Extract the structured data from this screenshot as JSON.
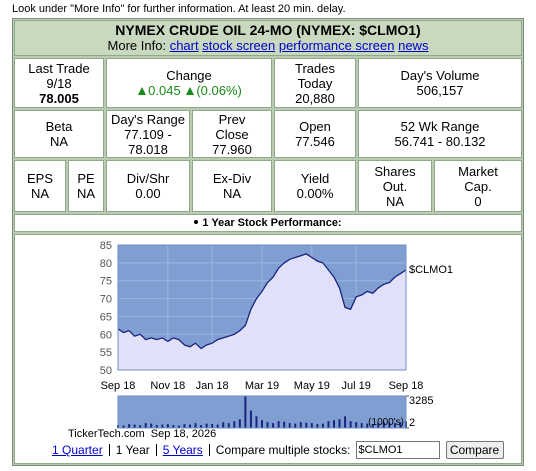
{
  "notice": "Look under \"More Info\" for further information. At least 20 min. delay.",
  "header": {
    "title": "NYMEX CRUDE OIL 24-MO (NYMEX: $CLMO1)",
    "more_info_label": "More Info:",
    "links": [
      "chart",
      "stock screen",
      "performance screen",
      "news"
    ]
  },
  "quote": {
    "last_trade": {
      "label": "Last Trade",
      "date": "9/18",
      "value": "78.005"
    },
    "change": {
      "label": "Change",
      "value": "0.045",
      "percent": "(0.06%)"
    },
    "trades_today": {
      "label": "Trades Today",
      "value": "20,880"
    },
    "days_volume": {
      "label": "Day's Volume",
      "value": "506,157"
    },
    "beta": {
      "label": "Beta",
      "value": "NA"
    },
    "days_range": {
      "label": "Day's Range",
      "value": "77.109 - 78.018"
    },
    "prev_close": {
      "label": "Prev Close",
      "value": "77.960"
    },
    "open": {
      "label": "Open",
      "value": "77.546"
    },
    "wk52_range": {
      "label": "52 Wk Range",
      "value": "56.741 - 80.132"
    },
    "eps": {
      "label": "EPS",
      "value": "NA"
    },
    "pe": {
      "label": "PE",
      "value": "NA"
    },
    "div_shr": {
      "label": "Div/Shr",
      "value": "0.00"
    },
    "ex_div": {
      "label": "Ex-Div",
      "value": "NA"
    },
    "yield": {
      "label": "Yield",
      "value": "0.00%"
    },
    "shares_out": {
      "label": "Shares Out.",
      "value": "NA"
    },
    "market_cap": {
      "label": "Market Cap.",
      "value": "0"
    }
  },
  "chart_data": [
    {
      "type": "area",
      "title": "1 Year Stock Performance:",
      "series": [
        {
          "name": "$CLMO1",
          "color": "#1a237e",
          "values": [
            61.5,
            60.5,
            61,
            59.5,
            60,
            58.5,
            59,
            58.5,
            59,
            58,
            59,
            58.5,
            57,
            56.5,
            57.5,
            56,
            57,
            57.5,
            58.5,
            59,
            59.5,
            60,
            61,
            62.5,
            67,
            70,
            72,
            74.5,
            76,
            78.5,
            80,
            81,
            81.5,
            82,
            82.5,
            81.5,
            80.5,
            80,
            78,
            76,
            73,
            67.5,
            67,
            70.5,
            71,
            72,
            71.5,
            73,
            74,
            74.5,
            76,
            77,
            78
          ]
        }
      ],
      "xlim": [
        0,
        52
      ],
      "xticks": [
        {
          "value": 0,
          "label": "Sep 18"
        },
        {
          "value": 9,
          "label": "Nov 18"
        },
        {
          "value": 17,
          "label": "Jan 18"
        },
        {
          "value": 26,
          "label": "Mar 19"
        },
        {
          "value": 35,
          "label": "May 19"
        },
        {
          "value": 43,
          "label": "Jul 19"
        },
        {
          "value": 52,
          "label": "Sep 18"
        }
      ],
      "ylim": [
        50,
        85
      ],
      "yticks": [
        50,
        55,
        60,
        65,
        70,
        75,
        80,
        85
      ],
      "grid": true
    },
    {
      "type": "bar",
      "y_label": "(1000's)",
      "color": "#1a237e",
      "values": [
        300,
        250,
        400,
        350,
        300,
        500,
        450,
        300,
        350,
        400,
        300,
        250,
        400,
        350,
        500,
        300,
        450,
        400,
        350,
        600,
        500,
        700,
        900,
        3285,
        1800,
        1200,
        800,
        600,
        500,
        700,
        650,
        500,
        450,
        600,
        550,
        500,
        400,
        450,
        700,
        800,
        900,
        1200,
        700,
        600,
        500,
        450,
        400,
        500,
        600,
        550,
        500,
        600,
        700
      ],
      "xlim": [
        0,
        52
      ],
      "ylim": [
        2,
        3285
      ],
      "yticks": [
        3285,
        2
      ]
    }
  ],
  "footer": {
    "source": "TickerTech.com",
    "date": "Sep 18, 2026",
    "periods": [
      "1 Quarter",
      "1 Year",
      "5 Years"
    ],
    "compare_label": "Compare multiple stocks:",
    "compare_input": "$CLMO1",
    "compare_button": "Compare"
  }
}
